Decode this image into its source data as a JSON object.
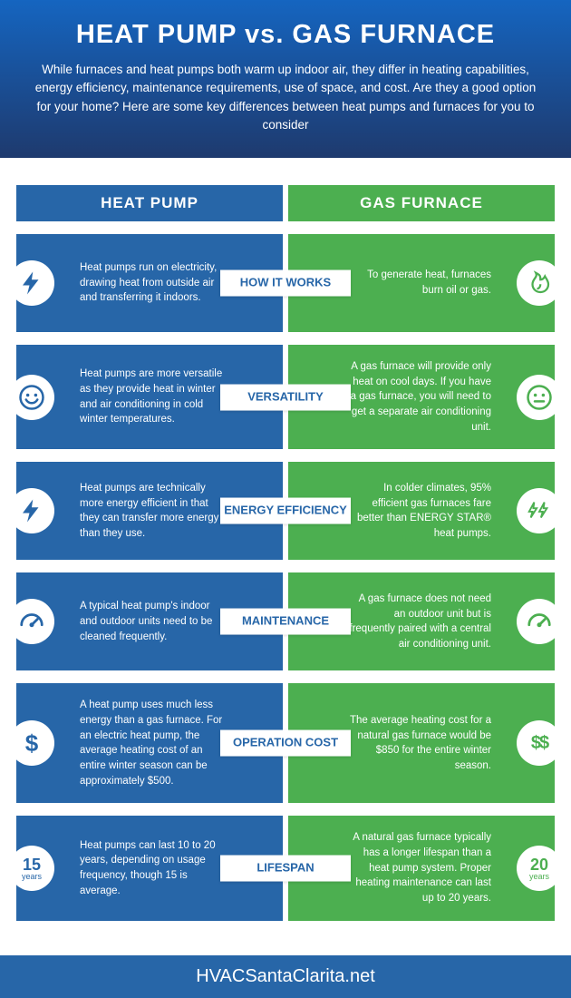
{
  "colors": {
    "blue": "#2766a8",
    "green": "#4caf50",
    "header_top": "#1565c0",
    "header_bottom": "#1e3a6e"
  },
  "header": {
    "title": "HEAT PUMP vs. GAS FURNACE",
    "subtitle": "While furnaces and heat pumps both warm up indoor air, they differ in heating capabilities, energy efficiency, maintenance requirements, use of space, and cost. Are they a good option for your home? Here are some key differences between heat pumps and furnaces for you to consider"
  },
  "columns": {
    "left": "HEAT PUMP",
    "right": "GAS FURNACE"
  },
  "rows": [
    {
      "label": "HOW IT WORKS",
      "left_icon": "bolt",
      "right_icon": "flame",
      "left": "Heat pumps run on electricity, drawing heat from outside air and transferring it indoors.",
      "right": "To generate heat, furnaces burn oil or gas."
    },
    {
      "label": "VERSATILITY",
      "left_icon": "smile",
      "right_icon": "meh",
      "left": "Heat pumps are more versatile as they provide heat in winter and air conditioning in cold winter temperatures.",
      "right": "A gas furnace will provide only heat on cool days. If you have a gas furnace, you will need to get a separate air conditioning unit."
    },
    {
      "label": "ENERGY EFFICIENCY",
      "left_icon": "bolt",
      "right_icon": "bolt2",
      "left": "Heat pumps are technically more energy efficient in that they can transfer more energy than they use.",
      "right": "In colder climates, 95% efficient gas furnaces fare better than ENERGY STAR® heat pumps."
    },
    {
      "label": "MAINTENANCE",
      "left_icon": "gauge",
      "right_icon": "gauge",
      "left": "A typical heat pump's indoor and outdoor units need to be cleaned frequently.",
      "right": "A gas furnace does not need an outdoor unit but is frequently paired with a central air conditioning unit."
    },
    {
      "label": "OPERATION COST",
      "left_icon": "dollar",
      "right_icon": "dollar2",
      "left": "A heat pump uses much less energy than a gas furnace. For an electric heat pump, the average heating cost of an entire winter season can be approximately $500.",
      "right": "The average heating cost for a natural gas furnace would be $850 for the entire winter season."
    },
    {
      "label": "LIFESPAN",
      "left_icon": "years",
      "left_num": "15",
      "right_icon": "years",
      "right_num": "20",
      "left": "Heat pumps can last 10 to 20 years, depending on usage frequency, though 15 is average.",
      "right": "A natural gas furnace typically has a longer lifespan than a heat pump system. Proper heating maintenance can last up to 20 years."
    }
  ],
  "footer": "HVACSantaClarita.net"
}
